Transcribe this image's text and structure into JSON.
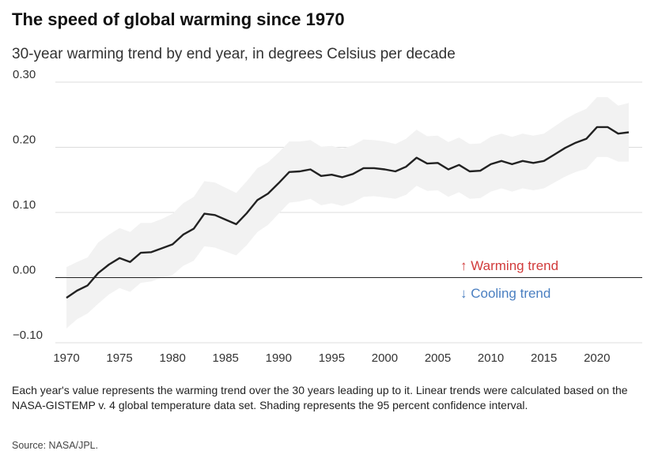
{
  "title": "The speed of global warming since 1970",
  "subtitle": "30-year warming trend by end year, in degrees Celsius per decade",
  "note": "Each year's value represents the warming trend over the 30 years leading up to it. Linear trends were calculated based on the NASA-GISTEMP v. 4 global temperature data set. Shading represents the 95 percent confidence interval.",
  "source": "Source: NASA/JPL.",
  "annotations": {
    "warming": "↑ Warming trend",
    "cooling": "↓ Cooling trend"
  },
  "colors": {
    "line": "#222222",
    "band": "#f2f2f2",
    "warming": "#d13b3b",
    "cooling": "#4a7fc1",
    "grid": "#dcdcdc",
    "zero": "#222222"
  },
  "chart_data": {
    "type": "line",
    "title": "The speed of global warming since 1970",
    "subtitle": "30-year warming trend by end year, in degrees Celsius per decade",
    "xlabel": "",
    "ylabel": "",
    "ylim": [
      -0.1,
      0.3
    ],
    "xlim": [
      1970,
      2023
    ],
    "yticks": [
      0.3,
      0.2,
      0.1,
      0.0,
      -0.1
    ],
    "ytick_labels": [
      "0.30",
      "0.20",
      "0.10",
      "0.00",
      "−0.10"
    ],
    "xticks": [
      "1970",
      "1975",
      "1980",
      "1985",
      "1990",
      "1995",
      "2000",
      "2005",
      "2010",
      "2015",
      "2020"
    ],
    "grid": true,
    "series": [
      {
        "x": [
          1970,
          1971,
          1972,
          1973,
          1974,
          1975,
          1976,
          1977,
          1978,
          1979,
          1980,
          1981,
          1982,
          1983,
          1984,
          1985,
          1986,
          1987,
          1988,
          1989,
          1990,
          1991,
          1992,
          1993,
          1994,
          1995,
          1996,
          1997,
          1998,
          1999,
          2000,
          2001,
          2002,
          2003,
          2004,
          2005,
          2006,
          2007,
          2008,
          2009,
          2010,
          2011,
          2012,
          2013,
          2014,
          2015,
          2016,
          2017,
          2018,
          2019,
          2020,
          2021,
          2022,
          2023
        ],
        "values": [
          -0.031,
          -0.02,
          -0.012,
          0.007,
          0.02,
          0.03,
          0.024,
          0.038,
          0.039,
          0.045,
          0.051,
          0.066,
          0.075,
          0.098,
          0.096,
          0.089,
          0.082,
          0.099,
          0.119,
          0.129,
          0.145,
          0.162,
          0.163,
          0.166,
          0.156,
          0.158,
          0.154,
          0.159,
          0.168,
          0.168,
          0.166,
          0.163,
          0.17,
          0.184,
          0.175,
          0.176,
          0.166,
          0.173,
          0.163,
          0.164,
          0.174,
          0.179,
          0.174,
          0.179,
          0.176,
          0.179,
          0.189,
          0.199,
          0.207,
          0.213,
          0.231,
          0.231,
          0.221,
          0.223
        ],
        "lower": [
          -0.078,
          -0.064,
          -0.055,
          -0.04,
          -0.026,
          -0.016,
          -0.022,
          -0.008,
          -0.006,
          0.0,
          0.004,
          0.018,
          0.026,
          0.048,
          0.046,
          0.04,
          0.034,
          0.05,
          0.07,
          0.081,
          0.098,
          0.115,
          0.117,
          0.121,
          0.111,
          0.114,
          0.11,
          0.115,
          0.124,
          0.125,
          0.123,
          0.121,
          0.127,
          0.141,
          0.133,
          0.134,
          0.124,
          0.131,
          0.121,
          0.122,
          0.132,
          0.137,
          0.132,
          0.137,
          0.134,
          0.137,
          0.146,
          0.155,
          0.162,
          0.167,
          0.185,
          0.185,
          0.178,
          0.178
        ],
        "upper": [
          0.016,
          0.024,
          0.031,
          0.054,
          0.066,
          0.076,
          0.07,
          0.084,
          0.084,
          0.09,
          0.098,
          0.114,
          0.124,
          0.148,
          0.146,
          0.138,
          0.13,
          0.148,
          0.168,
          0.177,
          0.192,
          0.209,
          0.209,
          0.211,
          0.201,
          0.202,
          0.198,
          0.203,
          0.212,
          0.211,
          0.209,
          0.205,
          0.213,
          0.227,
          0.217,
          0.218,
          0.208,
          0.215,
          0.205,
          0.206,
          0.216,
          0.221,
          0.216,
          0.221,
          0.218,
          0.221,
          0.232,
          0.243,
          0.252,
          0.259,
          0.277,
          0.277,
          0.264,
          0.268
        ]
      }
    ]
  }
}
